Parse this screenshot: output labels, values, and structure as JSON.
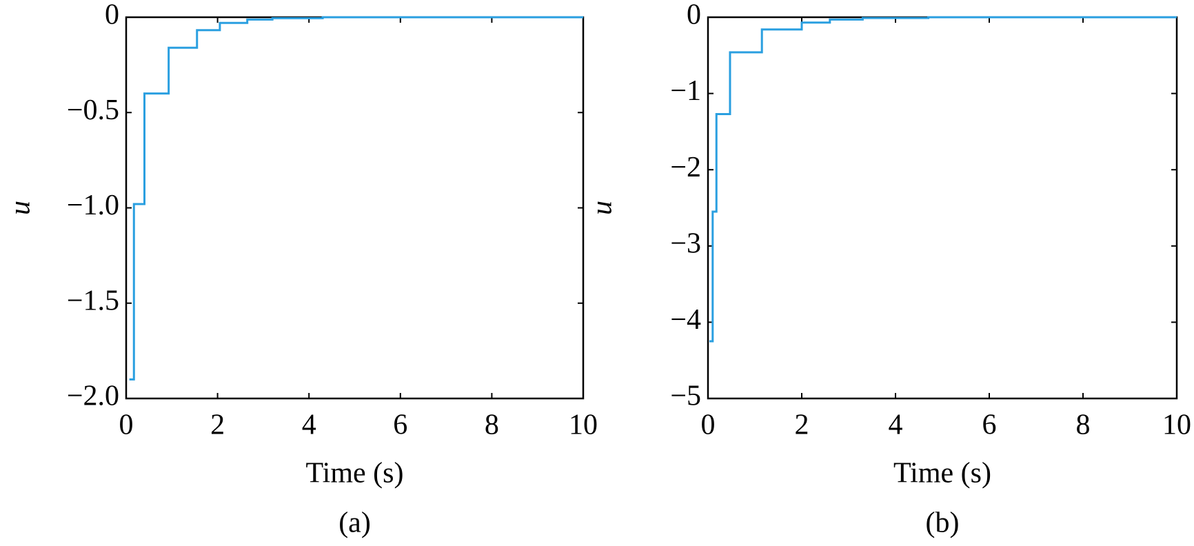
{
  "chart_data": [
    {
      "type": "line",
      "caption": "(a)",
      "xlabel": "Time (s)",
      "ylabel": "u",
      "x": [
        0.07,
        0.17,
        0.17,
        0.4,
        0.4,
        0.93,
        0.93,
        1.55,
        1.55,
        2.05,
        2.05,
        2.65,
        2.65,
        3.2,
        3.2,
        4.3,
        4.3,
        10
      ],
      "series": [
        {
          "color": "#2a9fe0",
          "values": [
            -1.9,
            -1.9,
            -0.98,
            -0.98,
            -0.4,
            -0.4,
            -0.16,
            -0.16,
            -0.068,
            -0.068,
            -0.03,
            -0.03,
            -0.012,
            -0.012,
            -0.005,
            -0.005,
            0,
            0
          ]
        }
      ],
      "xlim": [
        0,
        10
      ],
      "xticks": [
        0,
        2,
        4,
        6,
        8,
        10
      ],
      "ylim": [
        -2,
        0
      ],
      "yticks": [
        0,
        {
          "value": -0.5,
          "label": "−0.5"
        },
        {
          "value": -1,
          "label": "−1.0"
        },
        {
          "value": -1.5,
          "label": "−1.5"
        },
        {
          "value": -2,
          "label": "−2.0"
        }
      ]
    },
    {
      "type": "line",
      "caption": "(b)",
      "xlabel": "Time (s)",
      "ylabel": "u",
      "x": [
        0.03,
        0.1,
        0.1,
        0.18,
        0.18,
        0.47,
        0.47,
        1.15,
        1.15,
        2.0,
        2.0,
        2.6,
        2.6,
        3.3,
        3.3,
        4.7,
        4.7,
        10
      ],
      "series": [
        {
          "color": "#2a9fe0",
          "values": [
            -4.25,
            -4.25,
            -2.55,
            -2.55,
            -1.27,
            -1.27,
            -0.46,
            -0.46,
            -0.16,
            -0.16,
            -0.07,
            -0.07,
            -0.03,
            -0.03,
            -0.01,
            -0.01,
            0,
            0
          ]
        }
      ],
      "xlim": [
        0,
        10
      ],
      "xticks": [
        0,
        2,
        4,
        6,
        8,
        10
      ],
      "ylim": [
        -5,
        0
      ],
      "yticks": [
        0,
        {
          "value": -1,
          "label": "−1"
        },
        {
          "value": -2,
          "label": "−2"
        },
        {
          "value": -3,
          "label": "−3"
        },
        {
          "value": -4,
          "label": "−4"
        },
        {
          "value": -5,
          "label": "−5"
        }
      ]
    }
  ]
}
